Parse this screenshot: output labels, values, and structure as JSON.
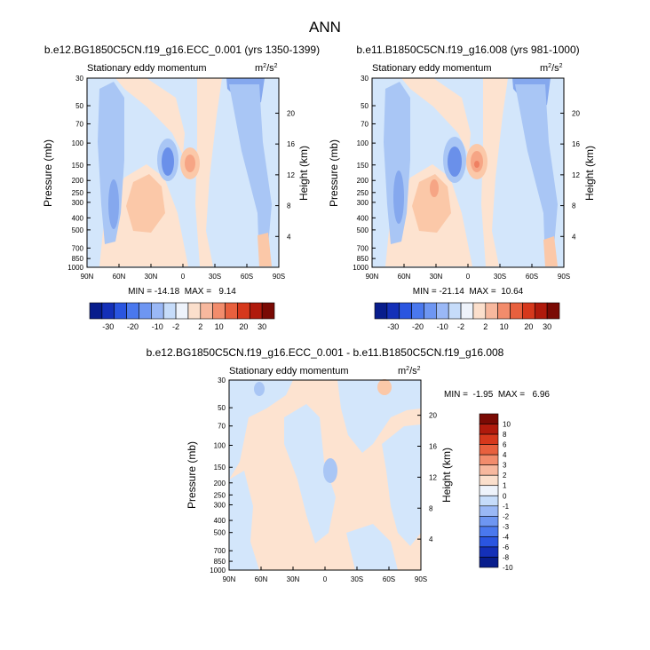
{
  "page_title": "ANN",
  "units_label": "m²/s²",
  "chart_data": [
    {
      "type": "heatmap",
      "title": "b.e12.BG1850C5CN.f19_g16.ECC_0.001 (yrs 1350-1399)",
      "subtitle": "Stationary eddy momentum",
      "units": "m²/s²",
      "x_ticks": [
        "90N",
        "60N",
        "30N",
        "0",
        "30S",
        "60S",
        "90S"
      ],
      "y_label": "Pressure (mb)",
      "y_ticks": [
        "30",
        "50",
        "70",
        "100",
        "150",
        "200",
        "250",
        "300",
        "400",
        "500",
        "700",
        "850",
        "1000"
      ],
      "right_label": "Height (km)",
      "right_ticks": [
        "4",
        "8",
        "12",
        "16",
        "20"
      ],
      "min": -14.18,
      "max": 9.14,
      "stats_text": "MIN = -14.18  MAX =   9.14",
      "colorbar_labels": [
        "-30",
        "-20",
        "-10",
        "-2",
        "2",
        "10",
        "20",
        "30"
      ]
    },
    {
      "type": "heatmap",
      "title": "b.e11.B1850C5CN.f19_g16.008 (yrs 981-1000)",
      "subtitle": "Stationary eddy momentum",
      "units": "m²/s²",
      "x_ticks": [
        "90N",
        "60N",
        "30N",
        "0",
        "30S",
        "60S",
        "90S"
      ],
      "y_label": "Pressure (mb)",
      "y_ticks": [
        "30",
        "50",
        "70",
        "100",
        "150",
        "200",
        "250",
        "300",
        "400",
        "500",
        "700",
        "850",
        "1000"
      ],
      "right_label": "Height (km)",
      "right_ticks": [
        "4",
        "8",
        "12",
        "16",
        "20"
      ],
      "min": -21.14,
      "max": 10.64,
      "stats_text": "MIN = -21.14  MAX =  10.64",
      "colorbar_labels": [
        "-30",
        "-20",
        "-10",
        "-2",
        "2",
        "10",
        "20",
        "30"
      ]
    },
    {
      "type": "heatmap",
      "title": "b.e12.BG1850C5CN.f19_g16.ECC_0.001 - b.e11.B1850C5CN.f19_g16.008",
      "subtitle": "Stationary eddy momentum",
      "units": "m²/s²",
      "x_ticks": [
        "90N",
        "60N",
        "30N",
        "0",
        "30S",
        "60S",
        "90S"
      ],
      "y_label": "Pressure (mb)",
      "y_ticks": [
        "30",
        "50",
        "70",
        "100",
        "150",
        "200",
        "250",
        "300",
        "400",
        "500",
        "700",
        "850",
        "1000"
      ],
      "right_label": "Height (km)",
      "right_ticks": [
        "4",
        "8",
        "12",
        "16",
        "20"
      ],
      "min": -1.95,
      "max": 6.96,
      "stats_text": "MIN =  -1.95  MAX =   6.96",
      "colorbar_labels": [
        "10",
        "8",
        "6",
        "4",
        "3",
        "2",
        "1",
        "0",
        "-1",
        "-2",
        "-3",
        "-4",
        "-6",
        "-8",
        "-10"
      ]
    }
  ],
  "colors": {
    "scale": [
      "#081d8c",
      "#1430b8",
      "#2a55e0",
      "#4a78ee",
      "#6e96f2",
      "#9ab8f6",
      "#c6dcfa",
      "#eef3fb",
      "#fbdfcc",
      "#f7b89e",
      "#f28c6c",
      "#e8603e",
      "#d6381c",
      "#b01a0c",
      "#7a0a04"
    ],
    "neg_light": "#d3e6fb",
    "neg_mid": "#a9c6f5",
    "neg_strong": "#85a8ee",
    "neg_deep": "#6a90ea",
    "pos_light": "#fde3d0",
    "pos_mid": "#fbc8a8",
    "pos_strong": "#f6a585",
    "pos_deep": "#ef8062"
  }
}
